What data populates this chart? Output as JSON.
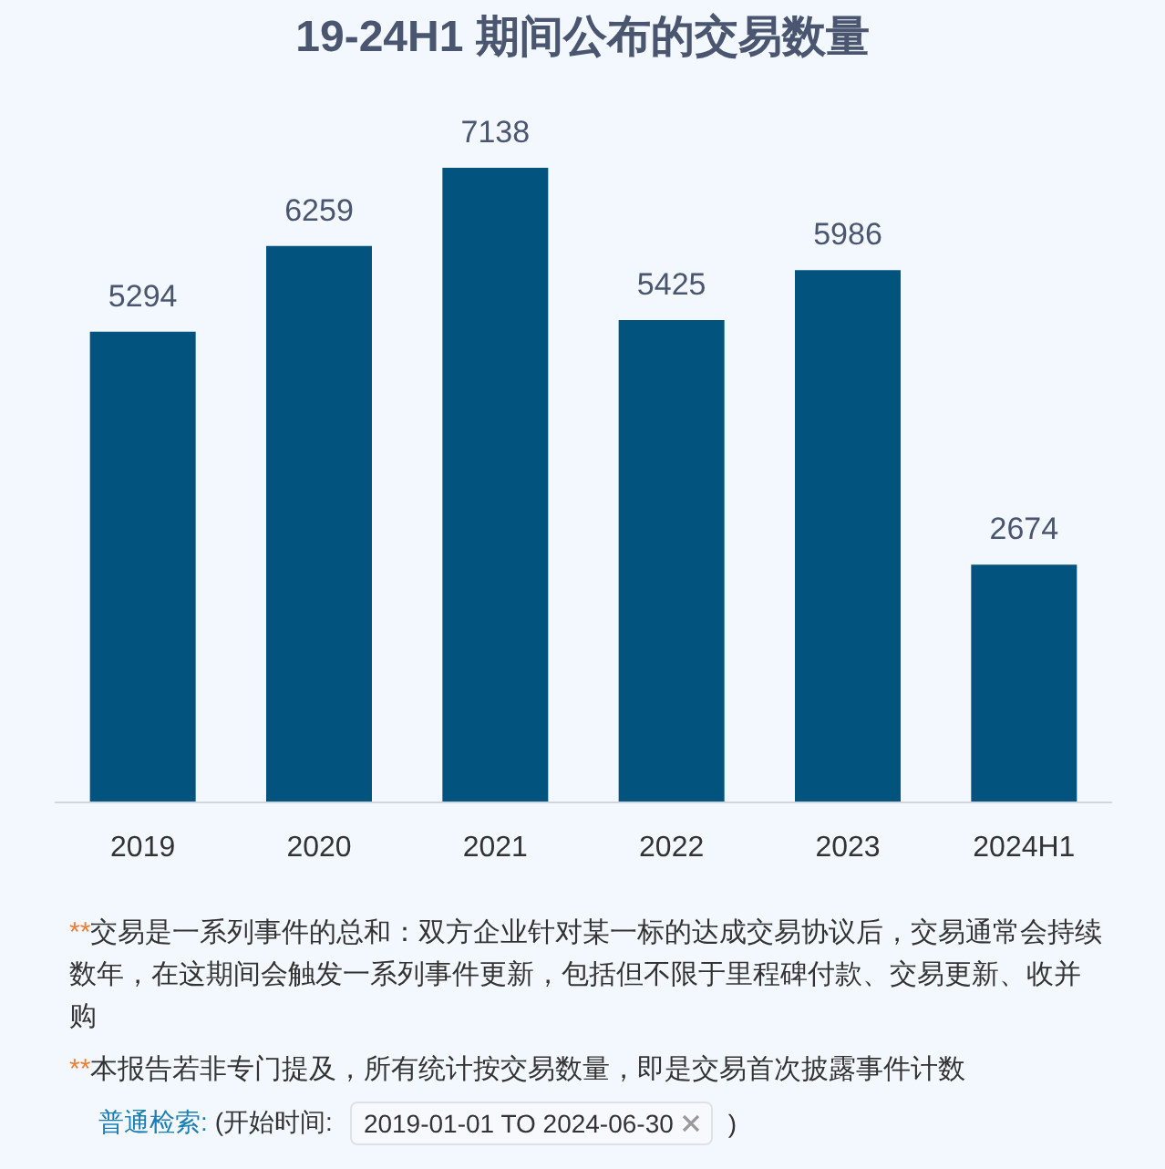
{
  "chart_data": {
    "type": "bar",
    "title": "19-24H1 期间公布的交易数量",
    "categories": [
      "2019",
      "2020",
      "2021",
      "2022",
      "2023",
      "2024H1"
    ],
    "values": [
      5294,
      6259,
      7138,
      5425,
      5986,
      2674
    ],
    "color": "#02547f",
    "tick_labels": "x",
    "data_labels": true,
    "annotations": [
      "**交易是一系列事件的总和：双方企业针对某一标的达成交易协议后，交易通常会持续数年，在这期间会触发一系列事件更新，包括但不限于里程碑付款、交易更新、收并购",
      "**本报告若非专门提及，所有统计按交易数量，即是交易首次披露事件计数",
      "普通检索:",
      "(开始时间:",
      "2019-01-01 TO 2024-06-30",
      ")"
    ]
  }
}
